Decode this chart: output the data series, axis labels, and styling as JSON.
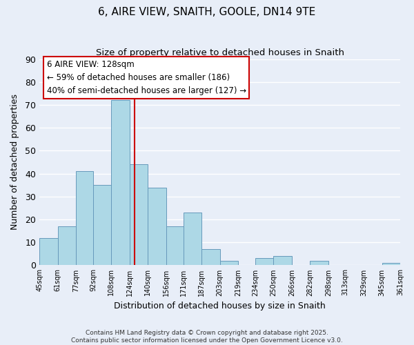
{
  "title": "6, AIRE VIEW, SNAITH, GOOLE, DN14 9TE",
  "subtitle": "Size of property relative to detached houses in Snaith",
  "xlabel": "Distribution of detached houses by size in Snaith",
  "ylabel": "Number of detached properties",
  "bar_color": "#add8e6",
  "bar_edge_color": "#6699bb",
  "background_color": "#e8eef8",
  "grid_color": "#ffffff",
  "vline_value": 128,
  "vline_color": "#cc0000",
  "bins": [
    45,
    61,
    77,
    92,
    108,
    124,
    140,
    156,
    171,
    187,
    203,
    219,
    234,
    250,
    266,
    282,
    298,
    313,
    329,
    345,
    361
  ],
  "counts": [
    12,
    17,
    41,
    35,
    72,
    44,
    34,
    17,
    23,
    7,
    2,
    0,
    3,
    4,
    0,
    2,
    0,
    0,
    0,
    1
  ],
  "tick_labels": [
    "45sqm",
    "61sqm",
    "77sqm",
    "92sqm",
    "108sqm",
    "124sqm",
    "140sqm",
    "156sqm",
    "171sqm",
    "187sqm",
    "203sqm",
    "219sqm",
    "234sqm",
    "250sqm",
    "266sqm",
    "282sqm",
    "298sqm",
    "313sqm",
    "329sqm",
    "345sqm",
    "361sqm"
  ],
  "ylim": [
    0,
    90
  ],
  "yticks": [
    0,
    10,
    20,
    30,
    40,
    50,
    60,
    70,
    80,
    90
  ],
  "annotation_line1": "6 AIRE VIEW: 128sqm",
  "annotation_line2": "← 59% of detached houses are smaller (186)",
  "annotation_line3": "40% of semi-detached houses are larger (127) →",
  "footnote1": "Contains HM Land Registry data © Crown copyright and database right 2025.",
  "footnote2": "Contains public sector information licensed under the Open Government Licence v3.0."
}
